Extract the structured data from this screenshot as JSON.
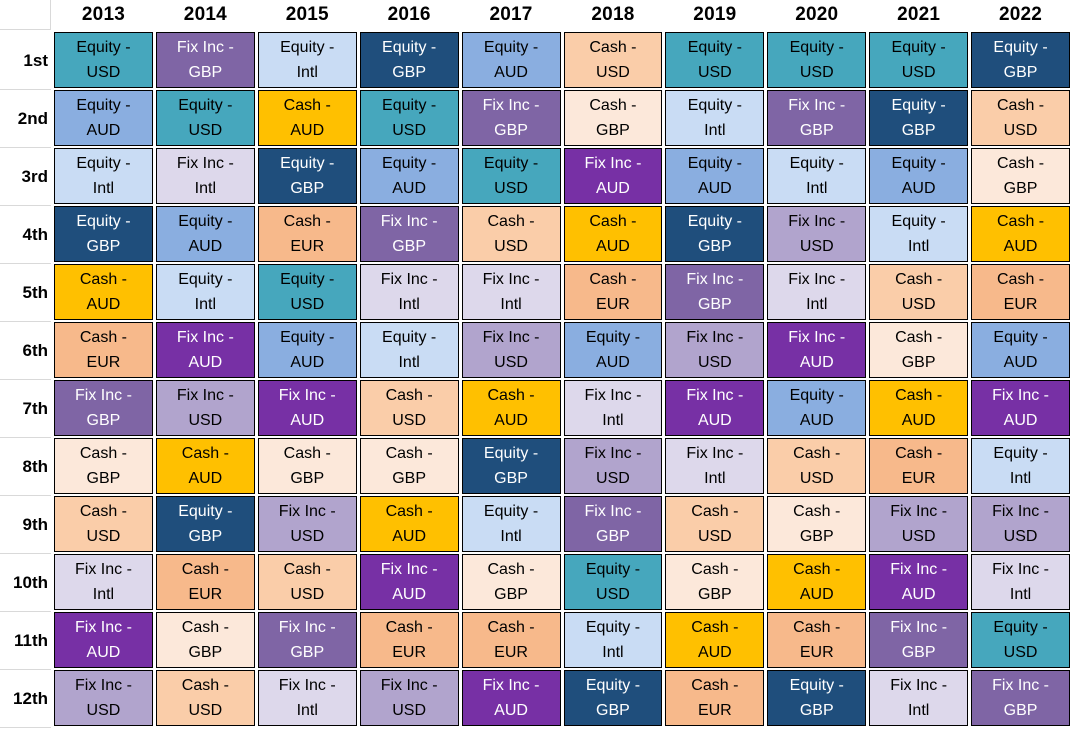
{
  "header": {
    "corner": "",
    "years": [
      "2013",
      "2014",
      "2015",
      "2016",
      "2017",
      "2018",
      "2019",
      "2020",
      "2021",
      "2022"
    ]
  },
  "assets": {
    "equity-usd": {
      "name": "Equity - USD",
      "line1": "Equity -",
      "line2": "USD",
      "bg": "#46A7BD",
      "text": "#000000"
    },
    "equity-aud": {
      "name": "Equity - AUD",
      "line1": "Equity -",
      "line2": "AUD",
      "bg": "#8AAEE0",
      "text": "#000000"
    },
    "equity-intl": {
      "name": "Equity - Intl",
      "line1": "Equity -",
      "line2": "Intl",
      "bg": "#C9DCF4",
      "text": "#000000"
    },
    "equity-gbp": {
      "name": "Equity - GBP",
      "line1": "Equity -",
      "line2": "GBP",
      "bg": "#1F4E7C",
      "text": "#FFFFFF"
    },
    "cash-usd": {
      "name": "Cash - USD",
      "line1": "Cash -",
      "line2": "USD",
      "bg": "#FACDA9",
      "text": "#000000"
    },
    "cash-gbp": {
      "name": "Cash - GBP",
      "line1": "Cash -",
      "line2": "GBP",
      "bg": "#FCE8DA",
      "text": "#000000"
    },
    "cash-aud": {
      "name": "Cash - AUD",
      "line1": "Cash -",
      "line2": "AUD",
      "bg": "#FFC000",
      "text": "#000000"
    },
    "cash-eur": {
      "name": "Cash - EUR",
      "line1": "Cash -",
      "line2": "EUR",
      "bg": "#F7B98B",
      "text": "#000000"
    },
    "fixinc-usd": {
      "name": "Fix Inc - USD",
      "line1": "Fix Inc -",
      "line2": "USD",
      "bg": "#B1A4CD",
      "text": "#000000"
    },
    "fixinc-gbp": {
      "name": "Fix Inc - GBP",
      "line1": "Fix Inc -",
      "line2": "GBP",
      "bg": "#7F65A5",
      "text": "#FFFFFF"
    },
    "fixinc-aud": {
      "name": "Fix Inc - AUD",
      "line1": "Fix Inc -",
      "line2": "AUD",
      "bg": "#7730A5",
      "text": "#FFFFFF"
    },
    "fixinc-intl": {
      "name": "Fix Inc - Intl",
      "line1": "Fix Inc -",
      "line2": "Intl",
      "bg": "#DDD8EB",
      "text": "#000000"
    }
  },
  "grid_by_rank": [
    [
      "equity-usd",
      "fixinc-gbp",
      "equity-intl",
      "equity-gbp",
      "equity-aud",
      "cash-usd",
      "equity-usd",
      "equity-usd",
      "equity-usd",
      "equity-gbp"
    ],
    [
      "equity-aud",
      "equity-usd",
      "cash-aud",
      "equity-usd",
      "fixinc-gbp",
      "cash-gbp",
      "equity-intl",
      "fixinc-gbp",
      "equity-gbp",
      "cash-usd"
    ],
    [
      "equity-intl",
      "fixinc-intl",
      "equity-gbp",
      "equity-aud",
      "equity-usd",
      "fixinc-aud",
      "equity-aud",
      "equity-intl",
      "equity-aud",
      "cash-gbp"
    ],
    [
      "equity-gbp",
      "equity-aud",
      "cash-eur",
      "fixinc-gbp",
      "cash-usd",
      "cash-aud",
      "equity-gbp",
      "fixinc-usd",
      "equity-intl",
      "cash-aud"
    ],
    [
      "cash-aud",
      "equity-intl",
      "equity-usd",
      "fixinc-intl",
      "fixinc-intl",
      "cash-eur",
      "fixinc-gbp",
      "fixinc-intl",
      "cash-usd",
      "cash-eur"
    ],
    [
      "cash-eur",
      "fixinc-aud",
      "equity-aud",
      "equity-intl",
      "fixinc-usd",
      "equity-aud",
      "fixinc-usd",
      "fixinc-aud",
      "cash-gbp",
      "equity-aud"
    ],
    [
      "fixinc-gbp",
      "fixinc-usd",
      "fixinc-aud",
      "cash-usd",
      "cash-aud",
      "fixinc-intl",
      "fixinc-aud",
      "equity-aud",
      "cash-aud",
      "fixinc-aud"
    ],
    [
      "cash-gbp",
      "cash-aud",
      "cash-gbp",
      "cash-gbp",
      "equity-gbp",
      "fixinc-usd",
      "fixinc-intl",
      "cash-usd",
      "cash-eur",
      "equity-intl"
    ],
    [
      "cash-usd",
      "equity-gbp",
      "fixinc-usd",
      "cash-aud",
      "equity-intl",
      "fixinc-gbp",
      "cash-usd",
      "cash-gbp",
      "fixinc-usd",
      "fixinc-usd"
    ],
    [
      "fixinc-intl",
      "cash-eur",
      "cash-usd",
      "fixinc-aud",
      "cash-gbp",
      "equity-usd",
      "cash-gbp",
      "cash-aud",
      "fixinc-aud",
      "fixinc-intl"
    ],
    [
      "fixinc-aud",
      "cash-gbp",
      "fixinc-gbp",
      "cash-eur",
      "cash-eur",
      "equity-intl",
      "cash-aud",
      "cash-eur",
      "fixinc-gbp",
      "equity-usd"
    ],
    [
      "fixinc-usd",
      "cash-usd",
      "fixinc-intl",
      "fixinc-usd",
      "fixinc-aud",
      "equity-gbp",
      "cash-eur",
      "equity-gbp",
      "fixinc-intl",
      "fixinc-gbp"
    ]
  ],
  "chart_data": {
    "type": "table",
    "columns": [
      "2013",
      "2014",
      "2015",
      "2016",
      "2017",
      "2018",
      "2019",
      "2020",
      "2021",
      "2022"
    ],
    "rows": [
      "1st",
      "2nd",
      "3rd",
      "4th",
      "5th",
      "6th",
      "7th",
      "8th",
      "9th",
      "10th",
      "11th",
      "12th"
    ],
    "matrix": [
      [
        "Equity - USD",
        "Fix Inc - GBP",
        "Equity - Intl",
        "Equity - GBP",
        "Equity - AUD",
        "Cash - USD",
        "Equity - USD",
        "Equity - USD",
        "Equity - USD",
        "Equity - GBP"
      ],
      [
        "Equity - AUD",
        "Equity - USD",
        "Cash - AUD",
        "Equity - USD",
        "Fix Inc - GBP",
        "Cash - GBP",
        "Equity - Intl",
        "Fix Inc - GBP",
        "Equity - GBP",
        "Cash - USD"
      ],
      [
        "Equity - Intl",
        "Fix Inc - Intl",
        "Equity - GBP",
        "Equity - AUD",
        "Equity - USD",
        "Fix Inc - AUD",
        "Equity - AUD",
        "Equity - Intl",
        "Equity - AUD",
        "Cash - GBP"
      ],
      [
        "Equity - GBP",
        "Equity - AUD",
        "Cash - EUR",
        "Fix Inc - GBP",
        "Cash - USD",
        "Cash - AUD",
        "Equity - GBP",
        "Fix Inc - USD",
        "Equity - Intl",
        "Cash - AUD"
      ],
      [
        "Cash - AUD",
        "Equity - Intl",
        "Equity - USD",
        "Fix Inc - Intl",
        "Fix Inc - Intl",
        "Cash - EUR",
        "Fix Inc - GBP",
        "Fix Inc - Intl",
        "Cash - USD",
        "Cash - EUR"
      ],
      [
        "Cash - EUR",
        "Fix Inc - AUD",
        "Equity - AUD",
        "Equity - Intl",
        "Fix Inc - USD",
        "Equity - AUD",
        "Fix Inc - USD",
        "Fix Inc - AUD",
        "Cash - GBP",
        "Equity - AUD"
      ],
      [
        "Fix Inc - GBP",
        "Fix Inc - USD",
        "Fix Inc - AUD",
        "Cash - USD",
        "Cash - AUD",
        "Fix Inc - Intl",
        "Fix Inc - AUD",
        "Equity - AUD",
        "Cash - AUD",
        "Fix Inc - AUD"
      ],
      [
        "Cash - GBP",
        "Cash - AUD",
        "Cash - GBP",
        "Cash - GBP",
        "Equity - GBP",
        "Fix Inc - USD",
        "Fix Inc - Intl",
        "Cash - USD",
        "Cash - EUR",
        "Equity - Intl"
      ],
      [
        "Cash - USD",
        "Equity - GBP",
        "Fix Inc - USD",
        "Cash - AUD",
        "Equity - Intl",
        "Fix Inc - GBP",
        "Cash - USD",
        "Cash - GBP",
        "Fix Inc - USD",
        "Fix Inc - USD"
      ],
      [
        "Fix Inc - Intl",
        "Cash - EUR",
        "Cash - USD",
        "Fix Inc - AUD",
        "Cash - GBP",
        "Equity - USD",
        "Cash - GBP",
        "Cash - AUD",
        "Fix Inc - AUD",
        "Fix Inc - Intl"
      ],
      [
        "Fix Inc - AUD",
        "Cash - GBP",
        "Fix Inc - GBP",
        "Cash - EUR",
        "Cash - EUR",
        "Equity - Intl",
        "Cash - AUD",
        "Cash - EUR",
        "Fix Inc - GBP",
        "Equity - USD"
      ],
      [
        "Fix Inc - USD",
        "Cash - USD",
        "Fix Inc - Intl",
        "Fix Inc - USD",
        "Fix Inc - AUD",
        "Equity - GBP",
        "Cash - EUR",
        "Equity - GBP",
        "Fix Inc - Intl",
        "Fix Inc - GBP"
      ]
    ],
    "color_legend": {
      "Equity - USD": "#46A7BD",
      "Equity - AUD": "#8AAEE0",
      "Equity - Intl": "#C9DCF4",
      "Equity - GBP": "#1F4E7C",
      "Cash - USD": "#FACDA9",
      "Cash - GBP": "#FCE8DA",
      "Cash - AUD": "#FFC000",
      "Cash - EUR": "#F7B98B",
      "Fix Inc - USD": "#B1A4CD",
      "Fix Inc - GBP": "#7F65A5",
      "Fix Inc - AUD": "#7730A5",
      "Fix Inc - Intl": "#DDD8EB"
    },
    "grid": "on",
    "legend_position": "none"
  }
}
